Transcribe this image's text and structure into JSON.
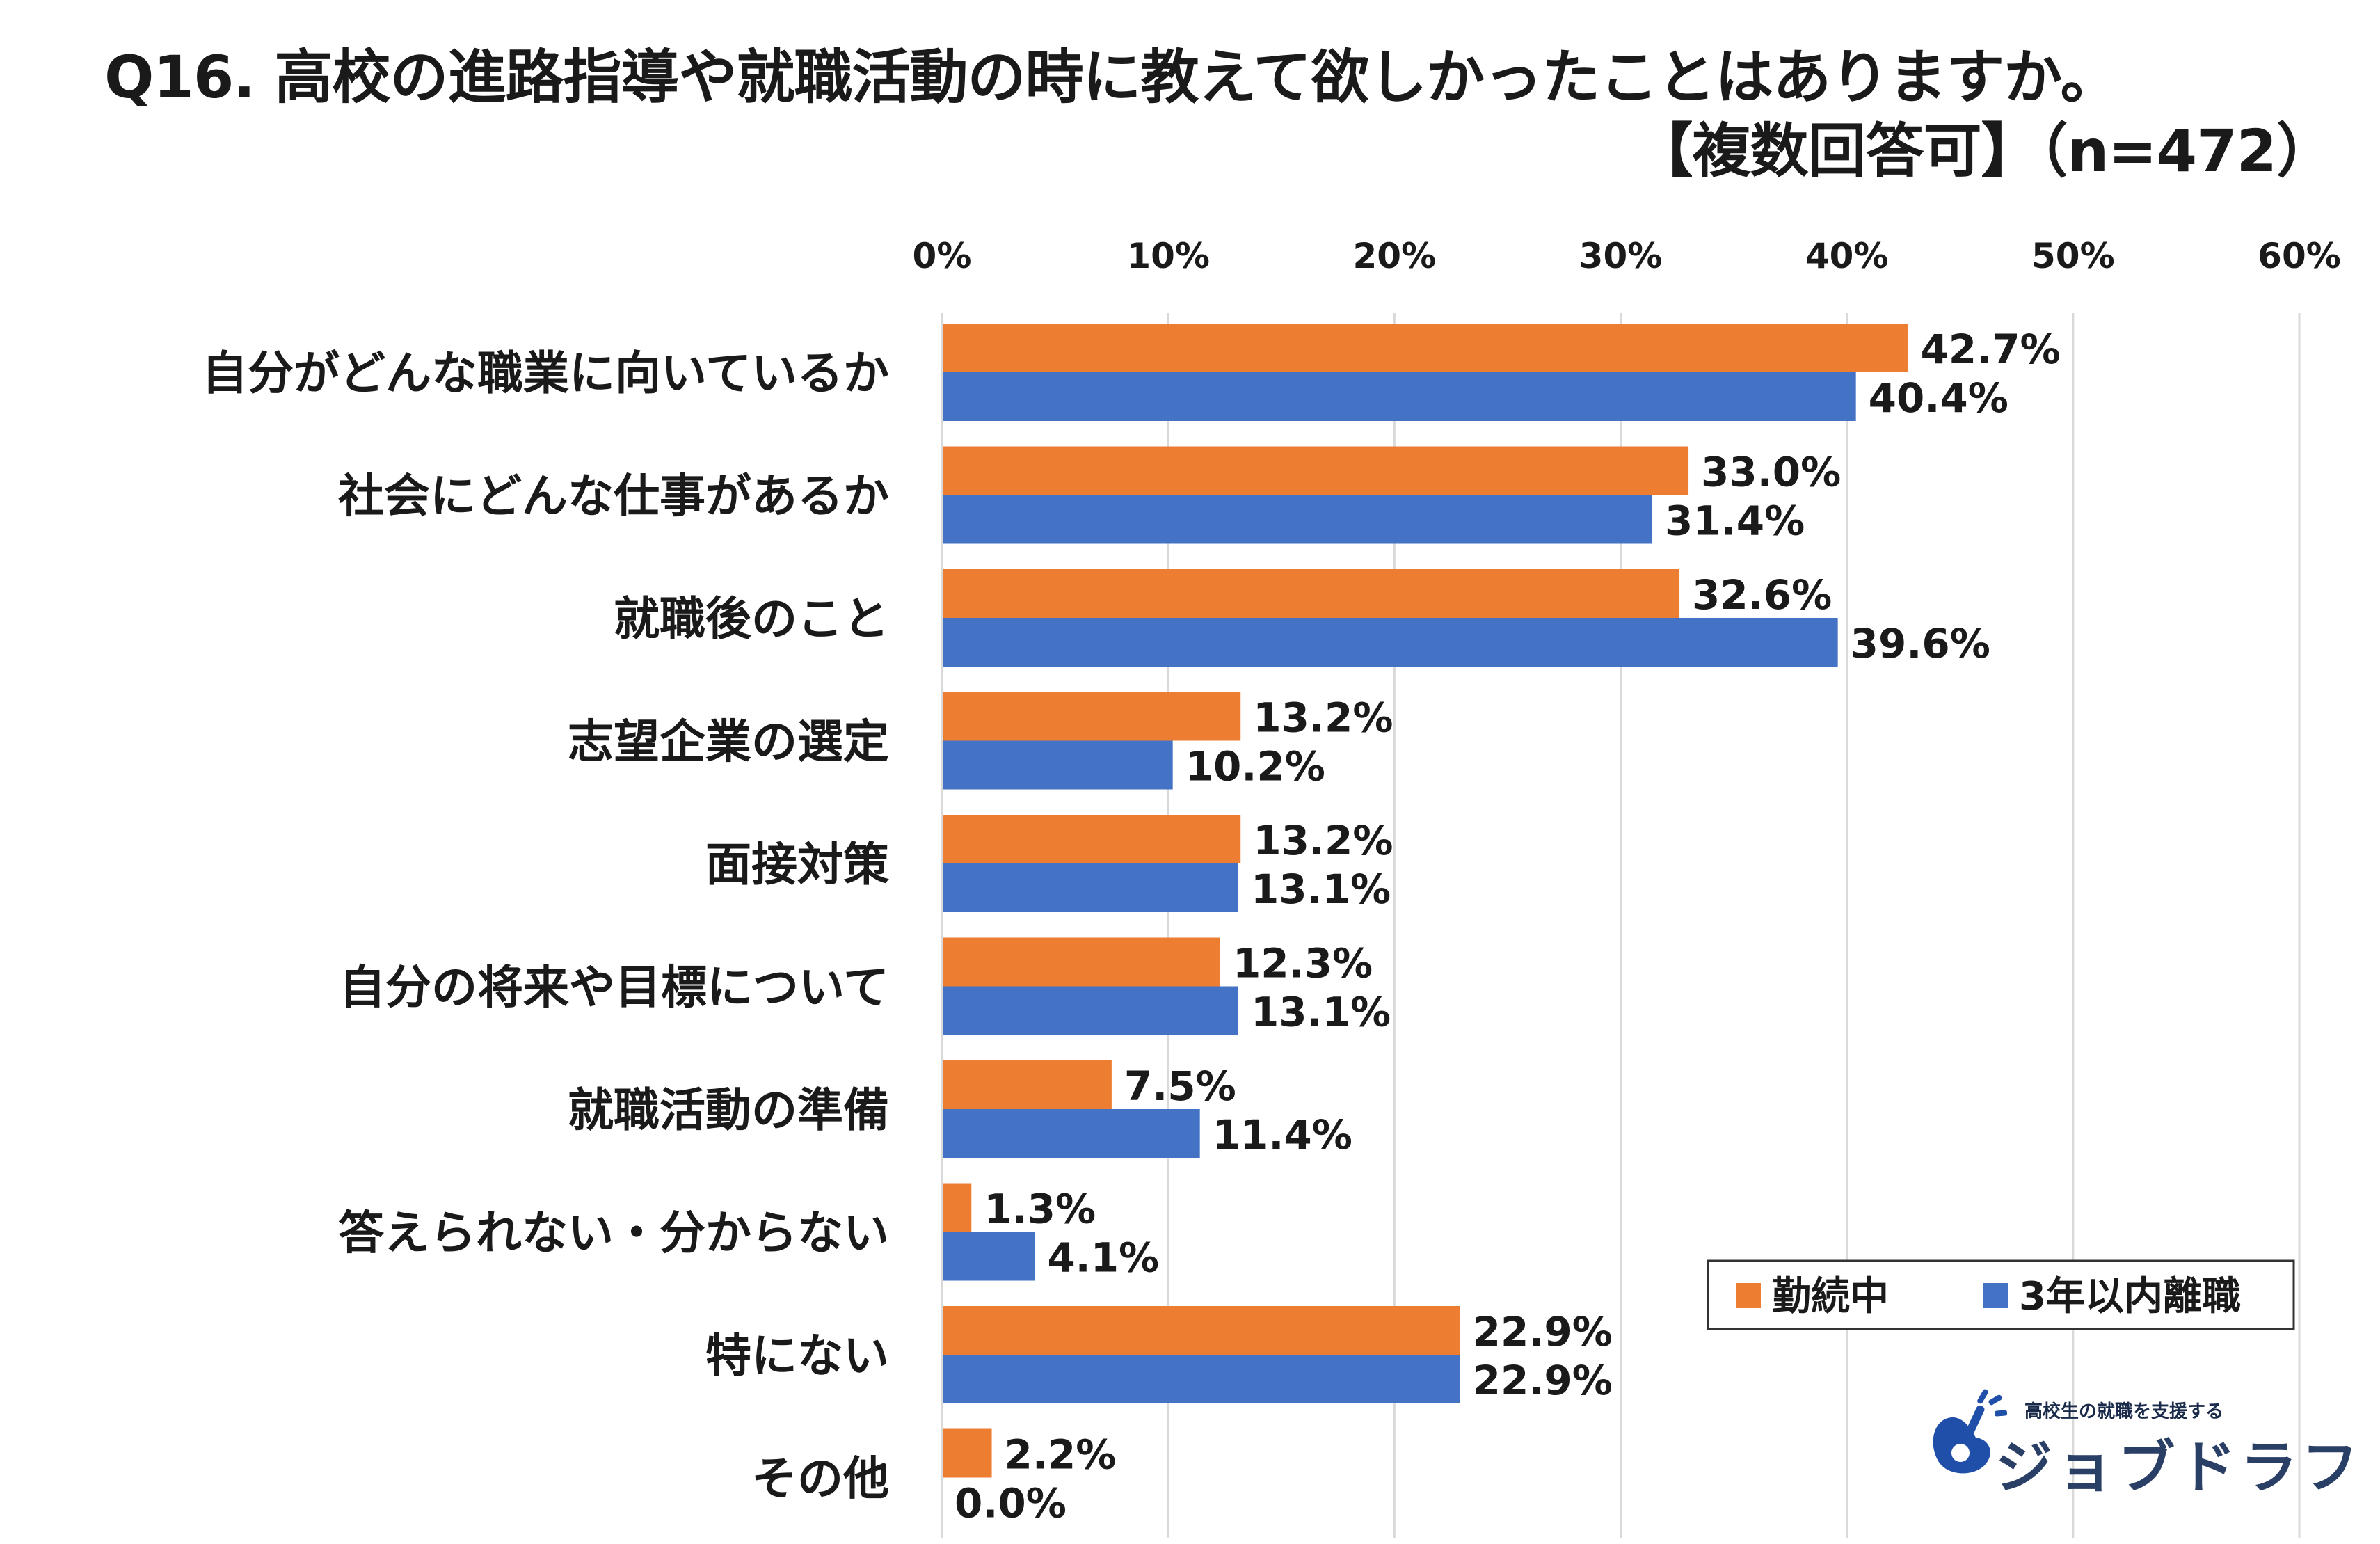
{
  "title": {
    "line1": "Q16. 高校の進路指導や就職活動の時に教えて欲しかったことはありますか。",
    "line2": "【複数回答可】（n=472）"
  },
  "logo": {
    "tagline": "高校生の就職を支援する",
    "name": "ジョブドラフト"
  },
  "colors": {
    "series1": "#ED7D31",
    "series2": "#4472C4",
    "grid": "#D9D9D9"
  },
  "chart_data": {
    "type": "bar",
    "orientation": "horizontal",
    "categories": [
      "自分がどんな職業に向いているか",
      "社会にどんな仕事があるか",
      "就職後のこと",
      "志望企業の選定",
      "面接対策",
      "自分の将来や目標について",
      "就職活動の準備",
      "答えられない・分からない",
      "特にない",
      "その他"
    ],
    "series": [
      {
        "name": "勤続中",
        "values": [
          42.7,
          33.0,
          32.6,
          13.2,
          13.2,
          12.3,
          7.5,
          1.3,
          22.9,
          2.2
        ]
      },
      {
        "name": "3年以内離職",
        "values": [
          40.4,
          31.4,
          39.6,
          10.2,
          13.1,
          13.1,
          11.4,
          4.1,
          22.9,
          0.0
        ]
      }
    ],
    "xlim": [
      0,
      60
    ],
    "xticks": [
      0,
      10,
      20,
      30,
      40,
      50,
      60
    ],
    "tick_format": "%",
    "grid": true,
    "legend_position": "bottom-right"
  }
}
